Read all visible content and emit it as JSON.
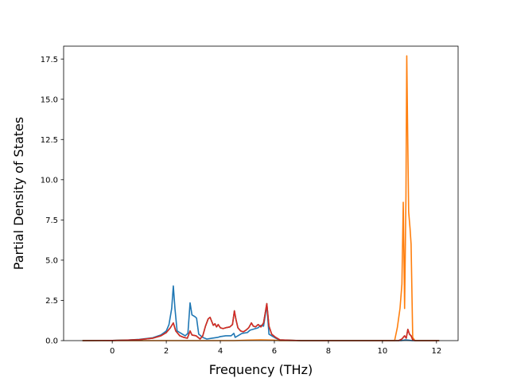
{
  "chart_data": {
    "type": "line",
    "title": "",
    "xlabel": "Frequency (THz)",
    "ylabel": "Partial Density of States",
    "xlim": [
      -1.8,
      12.8
    ],
    "ylim": [
      0,
      18.3
    ],
    "xticks": [
      0,
      2,
      4,
      6,
      8,
      10,
      12
    ],
    "yticks": [
      0.0,
      2.5,
      5.0,
      7.5,
      10.0,
      12.5,
      15.0,
      17.5
    ],
    "xtick_labels": [
      "0",
      "2",
      "4",
      "6",
      "8",
      "10",
      "12"
    ],
    "ytick_labels": [
      "0.0",
      "2.5",
      "5.0",
      "7.5",
      "10.0",
      "12.5",
      "15.0",
      "17.5"
    ],
    "grid": false,
    "legend": false,
    "series": [
      {
        "color": "#1f77b4",
        "points": [
          [
            -1.1,
            0
          ],
          [
            0,
            0.01
          ],
          [
            0.5,
            0.03
          ],
          [
            1,
            0.08
          ],
          [
            1.5,
            0.18
          ],
          [
            1.8,
            0.35
          ],
          [
            2.0,
            0.6
          ],
          [
            2.1,
            1.0
          ],
          [
            2.2,
            2.0
          ],
          [
            2.26,
            3.4
          ],
          [
            2.32,
            2.0
          ],
          [
            2.4,
            0.6
          ],
          [
            2.6,
            0.4
          ],
          [
            2.7,
            0.3
          ],
          [
            2.8,
            0.45
          ],
          [
            2.88,
            2.35
          ],
          [
            2.95,
            1.6
          ],
          [
            3.05,
            1.5
          ],
          [
            3.12,
            1.4
          ],
          [
            3.2,
            0.4
          ],
          [
            3.35,
            0.2
          ],
          [
            3.5,
            0.1
          ],
          [
            3.7,
            0.15
          ],
          [
            3.9,
            0.2
          ],
          [
            4.0,
            0.25
          ],
          [
            4.2,
            0.3
          ],
          [
            4.4,
            0.3
          ],
          [
            4.5,
            0.45
          ],
          [
            4.55,
            0.2
          ],
          [
            4.7,
            0.35
          ],
          [
            4.8,
            0.45
          ],
          [
            5.0,
            0.5
          ],
          [
            5.1,
            0.65
          ],
          [
            5.2,
            0.7
          ],
          [
            5.3,
            0.75
          ],
          [
            5.4,
            0.8
          ],
          [
            5.5,
            0.95
          ],
          [
            5.6,
            0.9
          ],
          [
            5.72,
            2.2
          ],
          [
            5.8,
            0.4
          ],
          [
            5.9,
            0.3
          ],
          [
            6.05,
            0.15
          ],
          [
            6.2,
            0.02
          ],
          [
            7,
            0
          ],
          [
            10.5,
            0
          ],
          [
            10.7,
            0
          ],
          [
            10.85,
            0.05
          ],
          [
            11.0,
            0.02
          ],
          [
            11.1,
            0
          ],
          [
            12.1,
            0
          ]
        ]
      },
      {
        "color": "#ff7f0e",
        "points": [
          [
            -1.1,
            0
          ],
          [
            4.5,
            0
          ],
          [
            5.0,
            0.03
          ],
          [
            5.5,
            0.05
          ],
          [
            6.0,
            0.03
          ],
          [
            6.2,
            0
          ],
          [
            10.45,
            0
          ],
          [
            10.55,
            0.8
          ],
          [
            10.65,
            2.0
          ],
          [
            10.72,
            3.5
          ],
          [
            10.77,
            8.6
          ],
          [
            10.82,
            2.0
          ],
          [
            10.87,
            9.0
          ],
          [
            10.9,
            17.7
          ],
          [
            10.94,
            12.0
          ],
          [
            10.97,
            8.0
          ],
          [
            11.02,
            7.0
          ],
          [
            11.06,
            6.0
          ],
          [
            11.12,
            0.2
          ],
          [
            11.2,
            0
          ],
          [
            12.1,
            0
          ]
        ]
      },
      {
        "color": "#2ca02c",
        "points": [
          [
            -1.1,
            0
          ],
          [
            0,
            0.01
          ],
          [
            0.5,
            0.03
          ],
          [
            1,
            0.06
          ],
          [
            1.5,
            0.15
          ],
          [
            1.8,
            0.3
          ],
          [
            2.0,
            0.5
          ],
          [
            2.15,
            0.8
          ],
          [
            2.26,
            1.1
          ],
          [
            2.35,
            0.6
          ],
          [
            2.5,
            0.3
          ],
          [
            2.65,
            0.2
          ],
          [
            2.78,
            0.15
          ],
          [
            2.88,
            0.6
          ],
          [
            2.95,
            0.35
          ],
          [
            3.1,
            0.3
          ],
          [
            3.25,
            0.1
          ],
          [
            3.35,
            0.3
          ],
          [
            3.45,
            0.9
          ],
          [
            3.55,
            1.35
          ],
          [
            3.62,
            1.45
          ],
          [
            3.68,
            1.2
          ],
          [
            3.74,
            0.95
          ],
          [
            3.8,
            1.05
          ],
          [
            3.86,
            0.85
          ],
          [
            3.92,
            1.0
          ],
          [
            4.0,
            0.8
          ],
          [
            4.1,
            0.75
          ],
          [
            4.2,
            0.8
          ],
          [
            4.35,
            0.85
          ],
          [
            4.45,
            1.0
          ],
          [
            4.52,
            1.85
          ],
          [
            4.58,
            1.3
          ],
          [
            4.65,
            0.8
          ],
          [
            4.75,
            0.6
          ],
          [
            4.85,
            0.55
          ],
          [
            4.95,
            0.65
          ],
          [
            5.05,
            0.8
          ],
          [
            5.15,
            1.1
          ],
          [
            5.22,
            0.9
          ],
          [
            5.3,
            0.85
          ],
          [
            5.4,
            1.0
          ],
          [
            5.5,
            0.85
          ],
          [
            5.6,
            1.1
          ],
          [
            5.72,
            2.3
          ],
          [
            5.8,
            0.9
          ],
          [
            5.9,
            0.4
          ],
          [
            6.05,
            0.2
          ],
          [
            6.2,
            0.05
          ],
          [
            7,
            0
          ],
          [
            10.6,
            0
          ],
          [
            10.72,
            0.1
          ],
          [
            10.82,
            0.3
          ],
          [
            10.88,
            0.15
          ],
          [
            10.94,
            0.7
          ],
          [
            11.0,
            0.4
          ],
          [
            11.06,
            0.3
          ],
          [
            11.12,
            0.05
          ],
          [
            11.2,
            0
          ],
          [
            12.1,
            0
          ]
        ]
      },
      {
        "color": "#d62728",
        "points": [
          [
            -1.1,
            0
          ],
          [
            0,
            0.01
          ],
          [
            0.5,
            0.03
          ],
          [
            1,
            0.06
          ],
          [
            1.5,
            0.15
          ],
          [
            1.8,
            0.3
          ],
          [
            2.0,
            0.5
          ],
          [
            2.15,
            0.8
          ],
          [
            2.26,
            1.1
          ],
          [
            2.35,
            0.6
          ],
          [
            2.5,
            0.3
          ],
          [
            2.65,
            0.2
          ],
          [
            2.78,
            0.15
          ],
          [
            2.88,
            0.6
          ],
          [
            2.95,
            0.35
          ],
          [
            3.1,
            0.3
          ],
          [
            3.25,
            0.1
          ],
          [
            3.35,
            0.3
          ],
          [
            3.45,
            0.9
          ],
          [
            3.55,
            1.35
          ],
          [
            3.62,
            1.45
          ],
          [
            3.68,
            1.2
          ],
          [
            3.74,
            0.95
          ],
          [
            3.8,
            1.05
          ],
          [
            3.86,
            0.85
          ],
          [
            3.92,
            1.0
          ],
          [
            4.0,
            0.8
          ],
          [
            4.1,
            0.75
          ],
          [
            4.2,
            0.8
          ],
          [
            4.35,
            0.85
          ],
          [
            4.45,
            1.0
          ],
          [
            4.52,
            1.85
          ],
          [
            4.58,
            1.3
          ],
          [
            4.65,
            0.8
          ],
          [
            4.75,
            0.6
          ],
          [
            4.85,
            0.55
          ],
          [
            4.95,
            0.65
          ],
          [
            5.05,
            0.8
          ],
          [
            5.15,
            1.1
          ],
          [
            5.22,
            0.9
          ],
          [
            5.3,
            0.85
          ],
          [
            5.4,
            1.0
          ],
          [
            5.5,
            0.85
          ],
          [
            5.6,
            1.1
          ],
          [
            5.72,
            2.3
          ],
          [
            5.8,
            0.9
          ],
          [
            5.9,
            0.4
          ],
          [
            6.05,
            0.2
          ],
          [
            6.2,
            0.05
          ],
          [
            7,
            0
          ],
          [
            10.6,
            0
          ],
          [
            10.72,
            0.1
          ],
          [
            10.82,
            0.3
          ],
          [
            10.88,
            0.15
          ],
          [
            10.94,
            0.7
          ],
          [
            11.0,
            0.4
          ],
          [
            11.06,
            0.3
          ],
          [
            11.12,
            0.05
          ],
          [
            11.2,
            0
          ],
          [
            12.1,
            0
          ]
        ]
      }
    ]
  }
}
